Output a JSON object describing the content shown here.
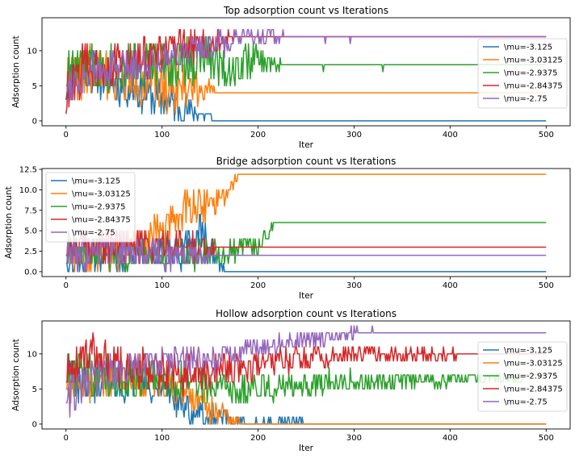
{
  "chart_data": [
    {
      "type": "line",
      "title": "Top adsorption count vs Iterations",
      "xlabel": "Iter",
      "ylabel": "Adsorption count",
      "xlim": [
        -25,
        525
      ],
      "ylim": [
        -0.7,
        14.7
      ],
      "xticks": [
        0,
        100,
        200,
        300,
        400,
        500
      ],
      "yticks": [
        0,
        5,
        10
      ],
      "ytick_labels": [
        "0",
        "5",
        "10"
      ],
      "legend": "right",
      "grid": false,
      "series": [
        {
          "name": "\\mu=-3.125",
          "color": "#1f77b4",
          "knots": [
            [
              0,
              5
            ],
            [
              20,
              8
            ],
            [
              40,
              6
            ],
            [
              60,
              5
            ],
            [
              80,
              4
            ],
            [
              100,
              3
            ],
            [
              120,
              2
            ],
            [
              140,
              1
            ],
            [
              155,
              0
            ],
            [
              160,
              0
            ],
            [
              500,
              0
            ]
          ],
          "amp": [
            [
              0,
              3.2
            ],
            [
              110,
              3
            ],
            [
              150,
              1
            ],
            [
              160,
              0
            ],
            [
              500,
              0
            ]
          ],
          "seed": 11
        },
        {
          "name": "\\mu=-3.03125",
          "color": "#ff7f0e",
          "knots": [
            [
              0,
              6
            ],
            [
              30,
              7
            ],
            [
              60,
              6
            ],
            [
              100,
              5
            ],
            [
              130,
              5
            ],
            [
              160,
              4
            ],
            [
              500,
              4
            ]
          ],
          "amp": [
            [
              0,
              4
            ],
            [
              130,
              3.5
            ],
            [
              162,
              0
            ],
            [
              500,
              0
            ]
          ],
          "seed": 22
        },
        {
          "name": "\\mu=-2.9375",
          "color": "#2ca02c",
          "knots": [
            [
              0,
              7
            ],
            [
              50,
              8
            ],
            [
              100,
              8
            ],
            [
              150,
              9
            ],
            [
              175,
              7
            ],
            [
              190,
              9
            ],
            [
              215,
              8
            ],
            [
              500,
              8
            ]
          ],
          "amp": [
            [
              0,
              3.5
            ],
            [
              170,
              3.5
            ],
            [
              215,
              1.5
            ],
            [
              230,
              0
            ],
            [
              500,
              0
            ]
          ],
          "seed": 33,
          "dips": [
            [
              268,
              7
            ],
            [
              330,
              7
            ]
          ]
        },
        {
          "name": "\\mu=-2.84375",
          "color": "#d62728",
          "knots": [
            [
              0,
              3
            ],
            [
              20,
              8
            ],
            [
              60,
              8
            ],
            [
              110,
              10
            ],
            [
              150,
              11
            ],
            [
              180,
              12
            ],
            [
              500,
              12
            ]
          ],
          "amp": [
            [
              0,
              3.5
            ],
            [
              150,
              2.5
            ],
            [
              185,
              0
            ],
            [
              500,
              0
            ]
          ],
          "seed": 44
        },
        {
          "name": "\\mu=-2.75",
          "color": "#9467bd",
          "knots": [
            [
              0,
              5
            ],
            [
              30,
              7
            ],
            [
              80,
              8
            ],
            [
              120,
              10
            ],
            [
              160,
              11
            ],
            [
              200,
              12
            ],
            [
              500,
              12
            ]
          ],
          "amp": [
            [
              0,
              3
            ],
            [
              170,
              2
            ],
            [
              220,
              0.8
            ],
            [
              240,
              0
            ],
            [
              500,
              0
            ]
          ],
          "seed": 55,
          "dips": [
            [
              270,
              11
            ],
            [
              296,
              11
            ]
          ]
        }
      ]
    },
    {
      "type": "line",
      "title": "Bridge adsorption count vs Iterations",
      "xlabel": "Iter",
      "ylabel": "Adsorption count",
      "xlim": [
        -25,
        525
      ],
      "ylim": [
        -0.6,
        12.6
      ],
      "xticks": [
        0,
        100,
        200,
        300,
        400,
        500
      ],
      "yticks": [
        0,
        2.5,
        5,
        7.5,
        10,
        12.5
      ],
      "ytick_labels": [
        "0.0",
        "2.5",
        "5.0",
        "7.5",
        "10.0",
        "12.5"
      ],
      "legend": "top-left",
      "grid": false,
      "series": [
        {
          "name": "\\mu=-3.125",
          "color": "#1f77b4",
          "knots": [
            [
              0,
              2
            ],
            [
              60,
              2
            ],
            [
              90,
              3
            ],
            [
              120,
              2
            ],
            [
              140,
              5
            ],
            [
              150,
              3
            ],
            [
              160,
              1
            ],
            [
              170,
              0
            ],
            [
              500,
              0
            ]
          ],
          "amp": [
            [
              0,
              2
            ],
            [
              150,
              2.5
            ],
            [
              165,
              0.5
            ],
            [
              175,
              0
            ],
            [
              500,
              0
            ]
          ],
          "seed": 66
        },
        {
          "name": "\\mu=-3.03125",
          "color": "#ff7f0e",
          "knots": [
            [
              0,
              2
            ],
            [
              40,
              2
            ],
            [
              80,
              3
            ],
            [
              110,
              6
            ],
            [
              130,
              8
            ],
            [
              150,
              8
            ],
            [
              170,
              10
            ],
            [
              180,
              12
            ],
            [
              500,
              12
            ]
          ],
          "amp": [
            [
              0,
              2
            ],
            [
              120,
              2.5
            ],
            [
              175,
              1
            ],
            [
              185,
              0
            ],
            [
              500,
              0
            ]
          ],
          "seed": 77
        },
        {
          "name": "\\mu=-2.9375",
          "color": "#2ca02c",
          "knots": [
            [
              0,
              3
            ],
            [
              60,
              2
            ],
            [
              100,
              2
            ],
            [
              150,
              2
            ],
            [
              180,
              3
            ],
            [
              200,
              3
            ],
            [
              220,
              6
            ],
            [
              500,
              6
            ]
          ],
          "amp": [
            [
              0,
              2
            ],
            [
              200,
              1.5
            ],
            [
              220,
              0
            ],
            [
              500,
              0
            ]
          ],
          "seed": 88
        },
        {
          "name": "\\mu=-2.84375",
          "color": "#d62728",
          "knots": [
            [
              0,
              3
            ],
            [
              100,
              3
            ],
            [
              160,
              3
            ],
            [
              500,
              3
            ]
          ],
          "amp": [
            [
              0,
              2.5
            ],
            [
              130,
              2
            ],
            [
              165,
              0
            ],
            [
              500,
              0
            ]
          ],
          "seed": 99
        },
        {
          "name": "\\mu=-2.75",
          "color": "#9467bd",
          "knots": [
            [
              0,
              2
            ],
            [
              40,
              3
            ],
            [
              100,
              2
            ],
            [
              140,
              2
            ],
            [
              160,
              2
            ],
            [
              500,
              2
            ]
          ],
          "amp": [
            [
              0,
              2.5
            ],
            [
              120,
              1.5
            ],
            [
              165,
              0
            ],
            [
              500,
              0
            ]
          ],
          "seed": 111
        }
      ]
    },
    {
      "type": "line",
      "title": "Hollow adsorption count vs Iterations",
      "xlabel": "Iter",
      "ylabel": "Adsorption count",
      "xlim": [
        -25,
        525
      ],
      "ylim": [
        -0.7,
        14.7
      ],
      "xticks": [
        0,
        100,
        200,
        300,
        400,
        500
      ],
      "yticks": [
        0,
        5,
        10
      ],
      "ytick_labels": [
        "0",
        "5",
        "10"
      ],
      "legend": "right",
      "grid": false,
      "series": [
        {
          "name": "\\mu=-3.125",
          "color": "#1f77b4",
          "knots": [
            [
              0,
              6
            ],
            [
              50,
              6
            ],
            [
              100,
              5
            ],
            [
              130,
              2
            ],
            [
              160,
              1
            ],
            [
              180,
              0
            ],
            [
              500,
              0
            ]
          ],
          "amp": [
            [
              0,
              3
            ],
            [
              130,
              2
            ],
            [
              200,
              1
            ],
            [
              245,
              1
            ],
            [
              250,
              0
            ],
            [
              500,
              0
            ]
          ],
          "seed": 122
        },
        {
          "name": "\\mu=-3.03125",
          "color": "#ff7f0e",
          "knots": [
            [
              0,
              6
            ],
            [
              60,
              7
            ],
            [
              100,
              6
            ],
            [
              140,
              3
            ],
            [
              170,
              1
            ],
            [
              185,
              0
            ],
            [
              500,
              0
            ]
          ],
          "amp": [
            [
              0,
              3.5
            ],
            [
              150,
              2
            ],
            [
              185,
              0
            ],
            [
              500,
              0
            ]
          ],
          "seed": 133
        },
        {
          "name": "\\mu=-2.9375",
          "color": "#2ca02c",
          "knots": [
            [
              0,
              7
            ],
            [
              60,
              7
            ],
            [
              120,
              6
            ],
            [
              160,
              5
            ],
            [
              200,
              5
            ],
            [
              260,
              6
            ],
            [
              320,
              6
            ],
            [
              420,
              6.5
            ],
            [
              500,
              6.5
            ]
          ],
          "amp": [
            [
              0,
              3.5
            ],
            [
              200,
              2
            ],
            [
              350,
              1.3
            ],
            [
              460,
              0.8
            ],
            [
              480,
              0
            ],
            [
              500,
              0
            ]
          ],
          "seed": 144
        },
        {
          "name": "\\mu=-2.84375",
          "color": "#d62728",
          "knots": [
            [
              0,
              7
            ],
            [
              20,
              10
            ],
            [
              60,
              8
            ],
            [
              120,
              7
            ],
            [
              170,
              8
            ],
            [
              230,
              9
            ],
            [
              300,
              10
            ],
            [
              500,
              10
            ]
          ],
          "amp": [
            [
              0,
              3.5
            ],
            [
              200,
              2
            ],
            [
              320,
              1
            ],
            [
              400,
              0.8
            ],
            [
              460,
              0
            ],
            [
              500,
              0
            ]
          ],
          "seed": 155
        },
        {
          "name": "\\mu=-2.75",
          "color": "#9467bd",
          "knots": [
            [
              0,
              4
            ],
            [
              40,
              7
            ],
            [
              100,
              9
            ],
            [
              150,
              9
            ],
            [
              200,
              11
            ],
            [
              250,
              12
            ],
            [
              300,
              13
            ],
            [
              500,
              13
            ]
          ],
          "amp": [
            [
              0,
              3
            ],
            [
              200,
              1.5
            ],
            [
              300,
              0.8
            ],
            [
              360,
              0
            ],
            [
              500,
              0
            ]
          ],
          "seed": 166
        }
      ]
    }
  ]
}
